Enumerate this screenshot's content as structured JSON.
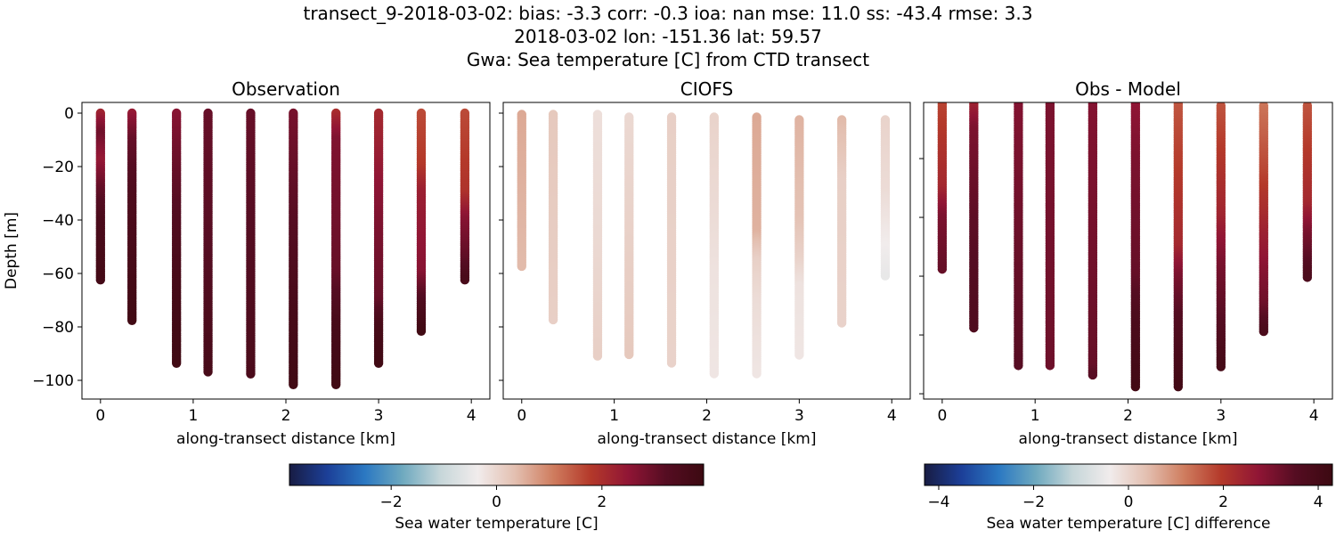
{
  "title_lines": [
    "transect_9-2018-03-02: bias: -3.3  corr: -0.3  ioa: nan  mse: 11.0  ss: -43.4  rmse: 3.3",
    "2018-03-02 lon: -151.36 lat: 59.57",
    "Gwa: Sea temperature [C] from CTD transect"
  ],
  "chart_data": [
    {
      "type": "scatter",
      "title": "Observation",
      "xlabel": "along-transect distance [km]",
      "ylabel": "Depth [m]",
      "xlim": [
        -0.2,
        4.2
      ],
      "ylim": [
        -107,
        4
      ],
      "xticks": [
        0,
        1,
        2,
        3,
        4
      ],
      "yticks": [
        0,
        -20,
        -40,
        -60,
        -80,
        -100
      ],
      "ytick_labels": [
        "0",
        "−20",
        "−40",
        "−60",
        "−80",
        "−100"
      ],
      "xtick_labels": [
        "0",
        "1",
        "2",
        "3",
        "4"
      ],
      "color_range": [
        -3.93,
        3.93
      ],
      "profiles": [
        {
          "x": 0,
          "top": 0,
          "bottom": -63,
          "values": [
            [
              0,
              2.2
            ],
            [
              -8,
              2.9
            ],
            [
              -18,
              2.4
            ],
            [
              -28,
              3.0
            ],
            [
              -40,
              3.5
            ],
            [
              -63,
              3.7
            ]
          ]
        },
        {
          "x": 0.34,
          "top": 0,
          "bottom": -78,
          "values": [
            [
              0,
              2.4
            ],
            [
              -10,
              3.0
            ],
            [
              -30,
              3.4
            ],
            [
              -78,
              3.8
            ]
          ]
        },
        {
          "x": 0.82,
          "top": 0,
          "bottom": -94,
          "values": [
            [
              0,
              2.6
            ],
            [
              -15,
              2.9
            ],
            [
              -40,
              3.3
            ],
            [
              -70,
              3.7
            ],
            [
              -94,
              3.8
            ]
          ]
        },
        {
          "x": 1.16,
          "top": 0,
          "bottom": -97,
          "values": [
            [
              0,
              3.0
            ],
            [
              -50,
              3.2
            ],
            [
              -97,
              3.6
            ]
          ]
        },
        {
          "x": 1.62,
          "top": 0,
          "bottom": -98,
          "values": [
            [
              0,
              3.0
            ],
            [
              -98,
              3.5
            ]
          ]
        },
        {
          "x": 2.08,
          "top": 0,
          "bottom": -102,
          "values": [
            [
              0,
              2.8
            ],
            [
              -40,
              3.2
            ],
            [
              -75,
              3.6
            ],
            [
              -102,
              3.8
            ]
          ]
        },
        {
          "x": 2.54,
          "top": 0,
          "bottom": -102,
          "values": [
            [
              0,
              2.0
            ],
            [
              -10,
              2.7
            ],
            [
              -60,
              3.0
            ],
            [
              -80,
              3.6
            ],
            [
              -102,
              3.8
            ]
          ]
        },
        {
          "x": 3.0,
          "top": 0,
          "bottom": -94,
          "values": [
            [
              0,
              2.1
            ],
            [
              -40,
              2.7
            ],
            [
              -70,
              3.0
            ],
            [
              -80,
              3.6
            ],
            [
              -94,
              3.8
            ]
          ]
        },
        {
          "x": 3.46,
          "top": 0,
          "bottom": -82,
          "values": [
            [
              0,
              1.6
            ],
            [
              -20,
              1.8
            ],
            [
              -30,
              2.3
            ],
            [
              -60,
              2.6
            ],
            [
              -70,
              3.3
            ],
            [
              -82,
              3.8
            ]
          ]
        },
        {
          "x": 3.93,
          "top": 0,
          "bottom": -63,
          "values": [
            [
              0,
              1.6
            ],
            [
              -30,
              1.9
            ],
            [
              -40,
              2.6
            ],
            [
              -55,
              3.1
            ],
            [
              -63,
              3.6
            ]
          ]
        }
      ]
    },
    {
      "type": "scatter",
      "title": "CIOFS",
      "xlabel": "along-transect distance [km]",
      "ylabel": "",
      "xlim": [
        -0.2,
        4.2
      ],
      "ylim": [
        -107,
        4
      ],
      "xticks": [
        0,
        1,
        2,
        3,
        4
      ],
      "yticks": [
        0,
        -20,
        -40,
        -60,
        -80,
        -100
      ],
      "ytick_labels": [],
      "xtick_labels": [
        "0",
        "1",
        "2",
        "3",
        "4"
      ],
      "color_range": [
        -3.93,
        3.93
      ],
      "profiles": [
        {
          "x": 0,
          "top": -0.5,
          "bottom": -58,
          "values": [
            [
              0,
              0.6
            ],
            [
              -58,
              0.4
            ]
          ]
        },
        {
          "x": 0.34,
          "top": -0.5,
          "bottom": -78,
          "values": [
            [
              0,
              0.2
            ],
            [
              -78,
              0.1
            ]
          ]
        },
        {
          "x": 0.82,
          "top": -0.5,
          "bottom": -91,
          "values": [
            [
              0,
              -0.15
            ],
            [
              -50,
              -0.05
            ],
            [
              -91,
              0.1
            ]
          ]
        },
        {
          "x": 1.16,
          "top": -1.5,
          "bottom": -91,
          "values": [
            [
              0,
              -0.05
            ],
            [
              -91,
              0.2
            ]
          ]
        },
        {
          "x": 1.62,
          "top": -1.5,
          "bottom": -94,
          "values": [
            [
              0,
              0.1
            ],
            [
              -94,
              0.05
            ]
          ]
        },
        {
          "x": 2.08,
          "top": -1.5,
          "bottom": -98,
          "values": [
            [
              0,
              0.05
            ],
            [
              -40,
              -0.1
            ],
            [
              -60,
              -0.2
            ],
            [
              -98,
              -0.25
            ]
          ]
        },
        {
          "x": 2.54,
          "top": -1.5,
          "bottom": -98,
          "values": [
            [
              0,
              0.6
            ],
            [
              -45,
              0.5
            ],
            [
              -55,
              0.1
            ],
            [
              -70,
              -0.1
            ],
            [
              -98,
              -0.25
            ]
          ]
        },
        {
          "x": 3.0,
          "top": -2.5,
          "bottom": -91,
          "values": [
            [
              0,
              0.5
            ],
            [
              -40,
              0.3
            ],
            [
              -55,
              0.05
            ],
            [
              -65,
              -0.2
            ],
            [
              -91,
              -0.25
            ]
          ]
        },
        {
          "x": 3.46,
          "top": -2.5,
          "bottom": -79,
          "values": [
            [
              0,
              0.45
            ],
            [
              -25,
              0.1
            ],
            [
              -79,
              0.05
            ]
          ]
        },
        {
          "x": 3.93,
          "top": -2.5,
          "bottom": -61,
          "values": [
            [
              0,
              0.05
            ],
            [
              -30,
              -0.1
            ],
            [
              -61,
              -0.5
            ]
          ]
        }
      ]
    },
    {
      "type": "scatter",
      "title": "Obs - Model",
      "xlabel": "along-transect distance [km]",
      "ylabel": "",
      "xlim": [
        -0.2,
        4.2
      ],
      "ylim": [
        -101.8,
        -0.9
      ],
      "xticks": [
        0,
        1,
        2,
        3,
        4
      ],
      "yticks": [
        -20,
        -40,
        -60,
        -80,
        -100
      ],
      "ytick_labels": [],
      "xtick_labels": [
        "0",
        "1",
        "2",
        "3",
        "4"
      ],
      "color_range": [
        -4.3,
        4.3
      ],
      "profiles": [
        {
          "x": 0,
          "top": 0,
          "bottom": -58,
          "values": [
            [
              0,
              1.8
            ],
            [
              -30,
              2.3
            ],
            [
              -40,
              3.0
            ],
            [
              -58,
              3.3
            ]
          ]
        },
        {
          "x": 0.34,
          "top": 0,
          "bottom": -78,
          "values": [
            [
              0,
              2.3
            ],
            [
              -10,
              3.0
            ],
            [
              -40,
              3.4
            ],
            [
              -78,
              3.7
            ]
          ]
        },
        {
          "x": 0.82,
          "top": 0,
          "bottom": -91,
          "values": [
            [
              0,
              2.9
            ],
            [
              -30,
              3.1
            ],
            [
              -91,
              3.5
            ]
          ]
        },
        {
          "x": 1.16,
          "top": 0,
          "bottom": -91,
          "values": [
            [
              0,
              3.0
            ],
            [
              -91,
              3.2
            ]
          ]
        },
        {
          "x": 1.62,
          "top": 0,
          "bottom": -94,
          "values": [
            [
              0,
              2.9
            ],
            [
              -91,
              3.3
            ],
            [
              -94,
              3.5
            ]
          ]
        },
        {
          "x": 2.08,
          "top": 0,
          "bottom": -98,
          "values": [
            [
              0,
              2.7
            ],
            [
              -20,
              3.0
            ],
            [
              -60,
              3.3
            ],
            [
              -75,
              3.8
            ],
            [
              -98,
              4.1
            ]
          ]
        },
        {
          "x": 2.54,
          "top": 0,
          "bottom": -98,
          "values": [
            [
              0,
              1.6
            ],
            [
              -50,
              2.3
            ],
            [
              -60,
              3.0
            ],
            [
              -75,
              3.6
            ],
            [
              -98,
              4.1
            ]
          ]
        },
        {
          "x": 3.0,
          "top": -2,
          "bottom": -91,
          "values": [
            [
              0,
              1.6
            ],
            [
              -40,
              2.4
            ],
            [
              -55,
              3.0
            ],
            [
              -75,
              3.5
            ],
            [
              -91,
              4.0
            ]
          ]
        },
        {
          "x": 3.46,
          "top": -2,
          "bottom": -79,
          "values": [
            [
              0,
              1.2
            ],
            [
              -25,
              1.8
            ],
            [
              -50,
              2.6
            ],
            [
              -70,
              3.2
            ],
            [
              -79,
              3.8
            ]
          ]
        },
        {
          "x": 3.93,
          "top": -2,
          "bottom": -61,
          "values": [
            [
              0,
              1.6
            ],
            [
              -35,
              2.3
            ],
            [
              -45,
              3.0
            ],
            [
              -61,
              3.8
            ]
          ]
        }
      ]
    }
  ],
  "colorbars": [
    {
      "label": "Sea water temperature [C]",
      "range": [
        -3.93,
        3.93
      ],
      "ticks": [
        -2,
        0,
        2
      ],
      "tick_labels": [
        "−2",
        "0",
        "2"
      ]
    },
    {
      "label": "Sea water temperature [C] difference",
      "range": [
        -4.3,
        4.3
      ],
      "ticks": [
        -4,
        -2,
        0,
        2,
        4
      ],
      "tick_labels": [
        "−4",
        "−2",
        "0",
        "2",
        "4"
      ]
    }
  ],
  "colormap": [
    "#181c43",
    "#1c3f98",
    "#2b78c2",
    "#6ea9bf",
    "#c6d6d9",
    "#f1ecec",
    "#e3bfb0",
    "#cf7d5f",
    "#b4392a",
    "#901535",
    "#550d22",
    "#3c0911"
  ]
}
